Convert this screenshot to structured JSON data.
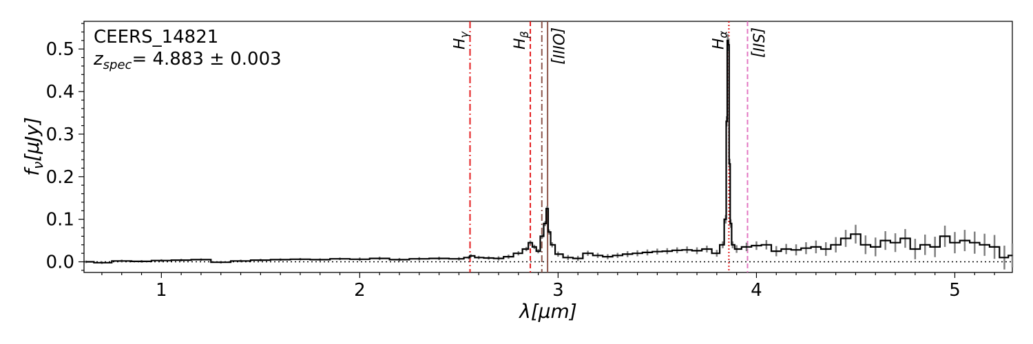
{
  "chart_data": {
    "type": "line",
    "title": "",
    "annotation": {
      "object": "CEERS_14821",
      "z_symbol": "z",
      "z_sub": "spec",
      "z_value": "= 4.883 ± 0.003"
    },
    "xlabel": {
      "main": "λ",
      "unit": "[μm]"
    },
    "ylabel": {
      "main": "f",
      "sub": "ν",
      "unit": "[μJy]"
    },
    "xlim": [
      0.61,
      5.29
    ],
    "ylim": [
      -0.025,
      0.565
    ],
    "xticks": [
      1,
      2,
      3,
      4,
      5
    ],
    "yticks": [
      0.0,
      0.1,
      0.2,
      0.3,
      0.4,
      0.5
    ],
    "ytick_labels": [
      "0.0",
      "0.1",
      "0.2",
      "0.3",
      "0.4",
      "0.5"
    ],
    "zero_line": 0.0,
    "colors": {
      "spectrum": "#000000",
      "error": "#7f7f7f",
      "h_lines": "#e31a1c",
      "oiii": "#8c564b",
      "sii": "#e377c2"
    },
    "emission_lines": [
      {
        "label": "H",
        "sub": "γ",
        "x": 2.556,
        "color": "#e31a1c",
        "style": "dashdot"
      },
      {
        "label": "H",
        "sub": "β",
        "x": 2.86,
        "color": "#e31a1c",
        "style": "dashed"
      },
      {
        "label": "",
        "sub": "",
        "x": 2.918,
        "color": "#8c564b",
        "style": "dashdot"
      },
      {
        "label": "[OIII]",
        "sub": "",
        "x": 2.947,
        "color": "#8c564b",
        "style": "solid",
        "rotated": true
      },
      {
        "label": "H",
        "sub": "α",
        "x": 3.861,
        "color": "#e31a1c",
        "style": "dotted"
      },
      {
        "label": "[SII]",
        "sub": "",
        "x": 3.955,
        "color": "#e377c2",
        "style": "dashed",
        "rotated": true
      }
    ],
    "series": [
      {
        "name": "",
        "x": [
          0.62,
          0.7,
          0.8,
          0.9,
          1.0,
          1.1,
          1.2,
          1.3,
          1.4,
          1.5,
          1.6,
          1.7,
          1.8,
          1.9,
          2.0,
          2.1,
          2.2,
          2.3,
          2.4,
          2.5,
          2.55,
          2.56,
          2.6,
          2.65,
          2.7,
          2.75,
          2.8,
          2.84,
          2.86,
          2.88,
          2.9,
          2.92,
          2.935,
          2.945,
          2.955,
          2.97,
          3.0,
          3.05,
          3.1,
          3.15,
          3.2,
          3.25,
          3.3,
          3.35,
          3.4,
          3.45,
          3.5,
          3.55,
          3.6,
          3.65,
          3.7,
          3.75,
          3.8,
          3.83,
          3.845,
          3.85,
          3.855,
          3.86,
          3.865,
          3.87,
          3.88,
          3.9,
          3.95,
          4.0,
          4.05,
          4.1,
          4.15,
          4.2,
          4.25,
          4.3,
          4.35,
          4.4,
          4.45,
          4.5,
          4.55,
          4.6,
          4.65,
          4.7,
          4.75,
          4.8,
          4.85,
          4.9,
          4.95,
          5.0,
          5.05,
          5.1,
          5.15,
          5.2,
          5.25,
          5.29
        ],
        "y": [
          0.0,
          -0.002,
          0.002,
          0.001,
          0.003,
          0.004,
          0.005,
          -0.001,
          0.002,
          0.004,
          0.005,
          0.006,
          0.005,
          0.007,
          0.006,
          0.008,
          0.005,
          0.007,
          0.008,
          0.007,
          0.01,
          0.014,
          0.01,
          0.009,
          0.008,
          0.012,
          0.02,
          0.03,
          0.045,
          0.035,
          0.025,
          0.06,
          0.09,
          0.125,
          0.07,
          0.04,
          0.018,
          0.01,
          0.008,
          0.02,
          0.015,
          0.012,
          0.015,
          0.018,
          0.02,
          0.022,
          0.024,
          0.025,
          0.027,
          0.028,
          0.026,
          0.03,
          0.02,
          0.04,
          0.1,
          0.33,
          0.52,
          0.51,
          0.23,
          0.09,
          0.04,
          0.03,
          0.035,
          0.038,
          0.04,
          0.025,
          0.03,
          0.028,
          0.032,
          0.035,
          0.03,
          0.04,
          0.055,
          0.065,
          0.04,
          0.035,
          0.05,
          0.045,
          0.055,
          0.03,
          0.04,
          0.035,
          0.06,
          0.045,
          0.05,
          0.045,
          0.04,
          0.035,
          0.01,
          0.015
        ],
        "err": [
          0.003,
          0.003,
          0.003,
          0.003,
          0.003,
          0.003,
          0.003,
          0.003,
          0.003,
          0.003,
          0.003,
          0.003,
          0.003,
          0.003,
          0.004,
          0.004,
          0.004,
          0.004,
          0.004,
          0.004,
          0.004,
          0.004,
          0.004,
          0.004,
          0.005,
          0.005,
          0.005,
          0.005,
          0.005,
          0.005,
          0.005,
          0.005,
          0.006,
          0.006,
          0.006,
          0.006,
          0.006,
          0.006,
          0.006,
          0.006,
          0.006,
          0.006,
          0.006,
          0.007,
          0.007,
          0.007,
          0.007,
          0.007,
          0.007,
          0.008,
          0.008,
          0.008,
          0.008,
          0.008,
          0.01,
          0.012,
          0.015,
          0.015,
          0.012,
          0.01,
          0.008,
          0.009,
          0.01,
          0.01,
          0.011,
          0.012,
          0.012,
          0.013,
          0.014,
          0.015,
          0.016,
          0.018,
          0.02,
          0.022,
          0.022,
          0.022,
          0.022,
          0.022,
          0.022,
          0.024,
          0.024,
          0.024,
          0.025,
          0.025,
          0.025,
          0.026,
          0.026,
          0.028,
          0.028,
          0.028
        ]
      }
    ]
  }
}
